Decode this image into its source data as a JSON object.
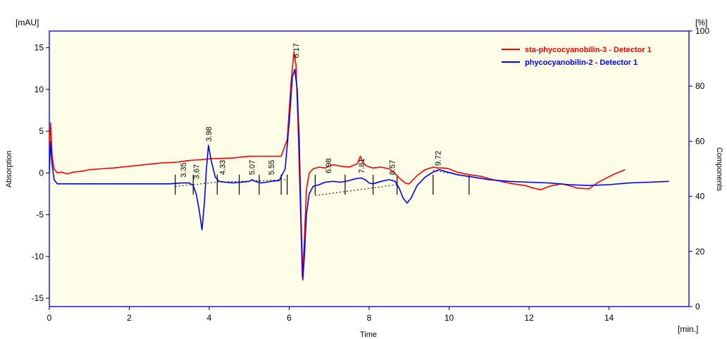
{
  "chart_data": {
    "type": "line",
    "xlabel": "Time",
    "ylabel": "Absorption",
    "y2label": "Components",
    "y_unit": "[mAU]",
    "y2_unit": "[%]",
    "x_unit": "[min.]",
    "xlim": [
      0,
      16
    ],
    "ylim": [
      -16,
      17
    ],
    "y2lim": [
      0,
      100
    ],
    "x_ticks": [
      "0",
      "2",
      "4",
      "6",
      "8",
      "10",
      "12",
      "14"
    ],
    "y_ticks": [
      "-15",
      "-10",
      "-5",
      "0",
      "5",
      "10",
      "15"
    ],
    "y2_ticks": [
      "0",
      "20",
      "40",
      "60",
      "80",
      "100"
    ],
    "x_tick_values": [
      0,
      2,
      4,
      6,
      8,
      10,
      12,
      14
    ],
    "y_tick_values": [
      -15,
      -10,
      -5,
      0,
      5,
      10,
      15
    ],
    "y2_tick_values": [
      0,
      20,
      40,
      60,
      80,
      100
    ],
    "legend_position": "top-right",
    "background_color": "#FDFDE8",
    "series": [
      {
        "name": "sta-phycocyanobilin-3 - Detector 1",
        "color": "#FF0000",
        "x": [
          0,
          0.03,
          0.07,
          0.12,
          0.2,
          0.3,
          0.45,
          0.6,
          0.8,
          1.0,
          1.3,
          1.6,
          2.0,
          2.4,
          2.8,
          3.2,
          3.5,
          3.8,
          4.0,
          4.3,
          4.6,
          5.0,
          5.4,
          5.8,
          5.95,
          6.05,
          6.12,
          6.17,
          6.22,
          6.28,
          6.33,
          6.38,
          6.43,
          6.5,
          6.6,
          6.75,
          6.9,
          7.1,
          7.3,
          7.5,
          7.7,
          7.78,
          7.85,
          7.95,
          8.1,
          8.3,
          8.5,
          8.6,
          8.75,
          8.9,
          9.0,
          9.2,
          9.4,
          9.6,
          9.72,
          9.85,
          10.0,
          10.2,
          10.5,
          10.8,
          11.0,
          11.3,
          11.6,
          11.9,
          12.1,
          12.3,
          12.5,
          12.8,
          13.0,
          13.2,
          13.5,
          13.7,
          13.9,
          14.1,
          14.4
        ],
        "y": [
          3,
          6,
          2,
          0.5,
          0,
          0.1,
          -0.1,
          0.1,
          0.2,
          0.4,
          0.5,
          0.6,
          0.8,
          1.0,
          1.2,
          1.3,
          1.5,
          1.6,
          1.7,
          1.75,
          1.8,
          2.0,
          2.0,
          2.0,
          4.0,
          11,
          14.5,
          13,
          6,
          -4,
          -12.5,
          -8,
          -2,
          0,
          0.5,
          0.7,
          0.6,
          1.0,
          0.8,
          0.7,
          1.1,
          2.0,
          1.2,
          0.8,
          0.6,
          0.7,
          0.5,
          0.2,
          -0.6,
          -1.2,
          -1.3,
          -0.3,
          0.4,
          0.7,
          0.6,
          0.6,
          0.5,
          0.1,
          -0.2,
          -0.4,
          -0.7,
          -1.0,
          -1.3,
          -1.5,
          -1.8,
          -2.0,
          -1.6,
          -1.3,
          -1.5,
          -1.8,
          -1.9,
          -1.2,
          -0.7,
          -0.2,
          0.4
        ]
      },
      {
        "name": "phycocyanobilin-2 - Detector 1",
        "color": "#0000FF",
        "x": [
          0,
          0.03,
          0.07,
          0.12,
          0.2,
          0.3,
          0.5,
          1.0,
          1.5,
          2.0,
          2.5,
          3.0,
          3.3,
          3.5,
          3.6,
          3.68,
          3.75,
          3.82,
          3.88,
          3.93,
          3.98,
          4.05,
          4.15,
          4.25,
          4.4,
          4.6,
          4.8,
          5.0,
          5.07,
          5.15,
          5.3,
          5.55,
          5.75,
          5.9,
          6.0,
          6.08,
          6.14,
          6.2,
          6.25,
          6.3,
          6.34,
          6.38,
          6.43,
          6.5,
          6.6,
          6.75,
          6.9,
          7.1,
          7.3,
          7.5,
          7.65,
          7.8,
          7.9,
          8.0,
          8.1,
          8.3,
          8.5,
          8.65,
          8.75,
          8.85,
          8.95,
          9.05,
          9.2,
          9.4,
          9.6,
          9.75,
          9.9,
          10.2,
          10.6,
          11.0,
          11.5,
          12.0,
          12.5,
          13.0,
          13.5,
          14.0,
          14.5,
          15.0,
          15.5
        ],
        "y": [
          0,
          3.8,
          1,
          -0.8,
          -1.3,
          -1.3,
          -1.3,
          -1.3,
          -1.3,
          -1.3,
          -1.3,
          -1.3,
          -1.2,
          -1.2,
          -1.5,
          -2.6,
          -4.5,
          -6.8,
          -3.5,
          0.5,
          3.3,
          1.5,
          -0.5,
          -1.0,
          -1.1,
          -1.2,
          -1.1,
          -1.0,
          -0.8,
          -1.0,
          -1.2,
          -1.0,
          -0.9,
          0.5,
          6.0,
          11.5,
          12.4,
          10,
          4,
          -6,
          -12.8,
          -10,
          -5,
          -2.5,
          -1.6,
          -1.4,
          -1.1,
          -1.0,
          -1.1,
          -0.9,
          -0.7,
          -0.6,
          -0.8,
          -1.2,
          -1.3,
          -1.0,
          -0.8,
          -1.0,
          -1.8,
          -3.0,
          -3.6,
          -3.0,
          -1.5,
          -0.5,
          0.1,
          0.4,
          0.2,
          -0.2,
          -0.5,
          -0.8,
          -1.0,
          -1.1,
          -1.2,
          -1.4,
          -1.5,
          -1.4,
          -1.2,
          -1.1,
          -1.0
        ]
      }
    ],
    "peaks": [
      {
        "label": "3.35",
        "x": 3.35,
        "y": -0.8
      },
      {
        "label": "3.67",
        "x": 3.67,
        "y": -1.0
      },
      {
        "label": "3.98",
        "x": 3.98,
        "y": 3.5
      },
      {
        "label": "4.33",
        "x": 4.33,
        "y": -0.5
      },
      {
        "label": "5.07",
        "x": 5.07,
        "y": -0.5
      },
      {
        "label": "5.55",
        "x": 5.55,
        "y": -0.5
      },
      {
        "label": "6.17",
        "x": 6.17,
        "y": 13.5
      },
      {
        "label": "6.98",
        "x": 6.98,
        "y": -0.3
      },
      {
        "label": "7.81",
        "x": 7.81,
        "y": -0.3
      },
      {
        "label": "8.57",
        "x": 8.57,
        "y": -0.5
      },
      {
        "label": "9.72",
        "x": 9.72,
        "y": 0.6
      }
    ],
    "baseline_marks": [
      3.15,
      3.6,
      4.2,
      4.75,
      5.25,
      5.8,
      5.95,
      6.65,
      7.4,
      8.1,
      8.7,
      9.6,
      10.5
    ],
    "baseline_segments": [
      {
        "x": [
          3.15,
          3.6
        ],
        "y": [
          -1.6,
          -1.4
        ]
      },
      {
        "x": [
          3.6,
          4.2
        ],
        "y": [
          -1.4,
          -1.1
        ]
      },
      {
        "x": [
          4.2,
          5.95
        ],
        "y": [
          -1.1,
          -0.8
        ]
      },
      {
        "x": [
          6.65,
          8.7
        ],
        "y": [
          -2.7,
          -1.4
        ]
      },
      {
        "x": [
          9.6,
          10.5
        ],
        "y": [
          0.3,
          -0.4
        ]
      }
    ]
  }
}
